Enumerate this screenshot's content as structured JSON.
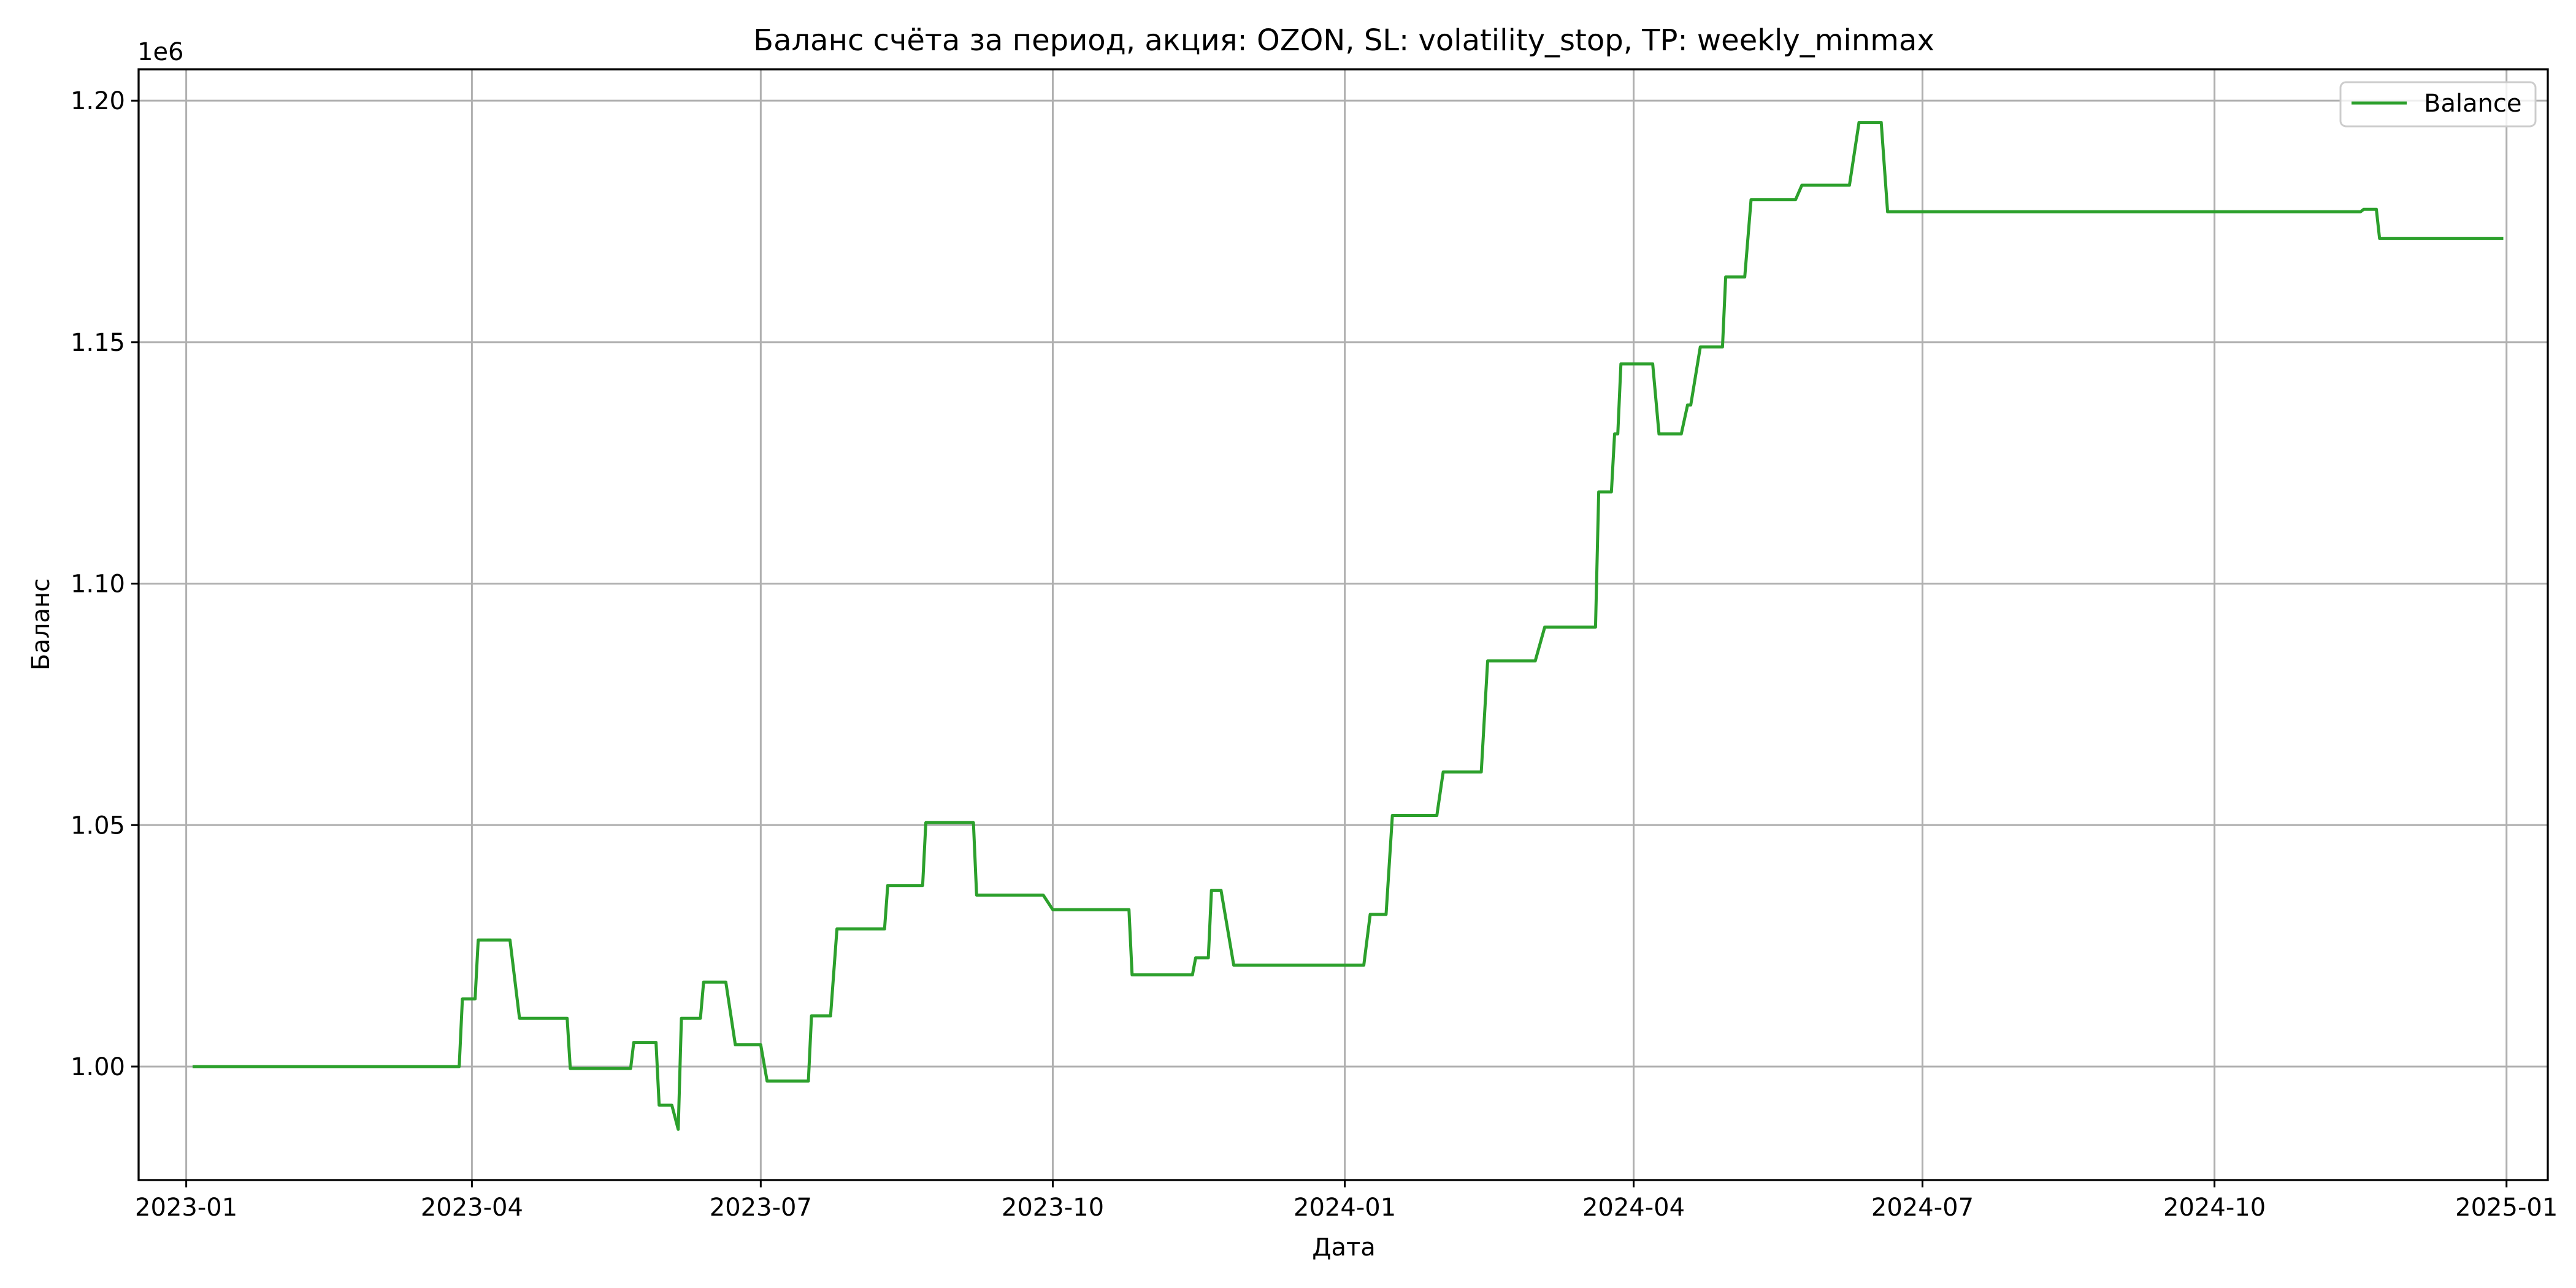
{
  "chart_data": {
    "type": "line",
    "title": "Баланс счёта за период, акция: OZON, SL: volatility_stop, TP: weekly_minmax",
    "xlabel": "Дата",
    "ylabel": "Баланс",
    "y_offset_label": "1e6",
    "x_ticks": [
      "2023-01",
      "2023-04",
      "2023-07",
      "2023-10",
      "2024-01",
      "2024-04",
      "2024-07",
      "2024-10",
      "2025-01"
    ],
    "y_ticks": [
      "1.00",
      "1.05",
      "1.10",
      "1.15",
      "1.20"
    ],
    "y_tick_values": [
      1000000,
      1050000,
      1100000,
      1150000,
      1200000
    ],
    "xlim": [
      "2022-12-17",
      "2025-01-14"
    ],
    "ylim": [
      976500,
      1206500
    ],
    "grid": true,
    "legend": {
      "placement": "top-right",
      "entries": [
        "Balance"
      ]
    },
    "series": [
      {
        "name": "Balance",
        "color": "#2ca02c",
        "points": [
          [
            "2023-01-03",
            1000000
          ],
          [
            "2023-03-28",
            1000000
          ],
          [
            "2023-03-29",
            1014000
          ],
          [
            "2023-04-02",
            1014000
          ],
          [
            "2023-04-03",
            1026200
          ],
          [
            "2023-04-13",
            1026200
          ],
          [
            "2023-04-16",
            1010000
          ],
          [
            "2023-05-01",
            1010000
          ],
          [
            "2023-05-02",
            999600
          ],
          [
            "2023-05-21",
            999600
          ],
          [
            "2023-05-22",
            1005000
          ],
          [
            "2023-05-29",
            1005000
          ],
          [
            "2023-05-30",
            992000
          ],
          [
            "2023-06-03",
            992000
          ],
          [
            "2023-06-05",
            987000
          ],
          [
            "2023-06-06",
            1010000
          ],
          [
            "2023-06-12",
            1010000
          ],
          [
            "2023-06-13",
            1017500
          ],
          [
            "2023-06-20",
            1017500
          ],
          [
            "2023-06-23",
            1004500
          ],
          [
            "2023-07-01",
            1004500
          ],
          [
            "2023-07-03",
            997000
          ],
          [
            "2023-07-16",
            997000
          ],
          [
            "2023-07-17",
            1010500
          ],
          [
            "2023-07-23",
            1010500
          ],
          [
            "2023-07-25",
            1028500
          ],
          [
            "2023-08-09",
            1028500
          ],
          [
            "2023-08-10",
            1037500
          ],
          [
            "2023-08-21",
            1037500
          ],
          [
            "2023-08-22",
            1050500
          ],
          [
            "2023-09-06",
            1050500
          ],
          [
            "2023-09-07",
            1035500
          ],
          [
            "2023-09-28",
            1035500
          ],
          [
            "2023-10-01",
            1032500
          ],
          [
            "2023-10-25",
            1032500
          ],
          [
            "2023-10-26",
            1019000
          ],
          [
            "2023-11-14",
            1019000
          ],
          [
            "2023-11-15",
            1022500
          ],
          [
            "2023-11-19",
            1022500
          ],
          [
            "2023-11-20",
            1036500
          ],
          [
            "2023-11-23",
            1036500
          ],
          [
            "2023-11-27",
            1021000
          ],
          [
            "2024-01-07",
            1021000
          ],
          [
            "2024-01-09",
            1031500
          ],
          [
            "2024-01-14",
            1031500
          ],
          [
            "2024-01-16",
            1052000
          ],
          [
            "2024-01-30",
            1052000
          ],
          [
            "2024-02-01",
            1061000
          ],
          [
            "2024-02-13",
            1061000
          ],
          [
            "2024-02-15",
            1084000
          ],
          [
            "2024-03-01",
            1084000
          ],
          [
            "2024-03-04",
            1091000
          ],
          [
            "2024-03-20",
            1091000
          ],
          [
            "2024-03-21",
            1119000
          ],
          [
            "2024-03-25",
            1119000
          ],
          [
            "2024-03-26",
            1131000
          ],
          [
            "2024-03-27",
            1131000
          ],
          [
            "2024-03-28",
            1145500
          ],
          [
            "2024-04-07",
            1145500
          ],
          [
            "2024-04-09",
            1131000
          ],
          [
            "2024-04-16",
            1131000
          ],
          [
            "2024-04-18",
            1137000
          ],
          [
            "2024-04-19",
            1137000
          ],
          [
            "2024-04-22",
            1149000
          ],
          [
            "2024-04-29",
            1149000
          ],
          [
            "2024-04-30",
            1163500
          ],
          [
            "2024-05-06",
            1163500
          ],
          [
            "2024-05-08",
            1179500
          ],
          [
            "2024-05-22",
            1179500
          ],
          [
            "2024-05-24",
            1182500
          ],
          [
            "2024-06-08",
            1182500
          ],
          [
            "2024-06-11",
            1195500
          ],
          [
            "2024-06-18",
            1195500
          ],
          [
            "2024-06-20",
            1177000
          ],
          [
            "2024-11-16",
            1177000
          ],
          [
            "2024-11-17",
            1177500
          ],
          [
            "2024-11-21",
            1177500
          ],
          [
            "2024-11-22",
            1171500
          ],
          [
            "2024-12-31",
            1171500
          ]
        ]
      }
    ]
  }
}
